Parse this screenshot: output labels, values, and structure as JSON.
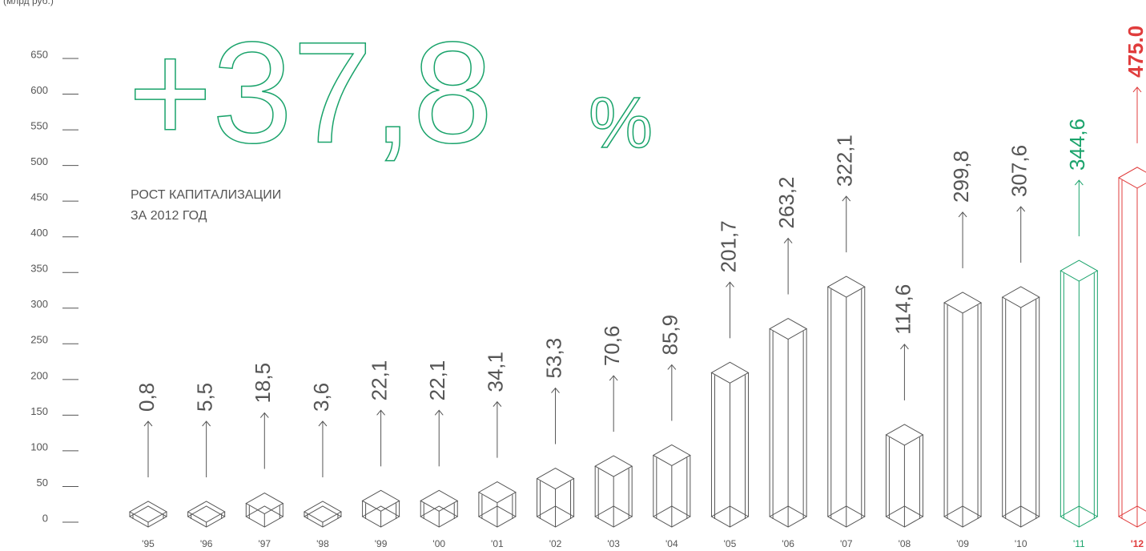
{
  "chart_data": {
    "type": "column3d",
    "y_unit": "(млрд руб.)",
    "headline": "+37,8",
    "headline_unit": "%",
    "subtitle_lines": [
      "РОСТ КАПИТАЛИЗАЦИИ",
      "ЗА 2012 ГОД"
    ],
    "categories": [
      "'95",
      "'96",
      "'97",
      "'98",
      "'99",
      "'00",
      "'01",
      "'02",
      "'03",
      "'04",
      "'05",
      "'06",
      "'07",
      "'08",
      "'09",
      "'10",
      "'11",
      "'12"
    ],
    "values": [
      0.8,
      5.5,
      18.5,
      3.6,
      22.1,
      22.1,
      34.1,
      53.3,
      70.6,
      85.9,
      201.7,
      263.2,
      322.1,
      114.6,
      299.8,
      307.6,
      344.6,
      475.0
    ],
    "value_labels": [
      "0,8",
      "5,5",
      "18,5",
      "3,6",
      "22,1",
      "22,1",
      "34,1",
      "53,3",
      "70,6",
      "85,9",
      "201,7",
      "263,2",
      "322,1",
      "114,6",
      "299,8",
      "307,6",
      "344,6",
      "475.0"
    ],
    "colors": [
      "#555555",
      "#555555",
      "#555555",
      "#555555",
      "#555555",
      "#555555",
      "#555555",
      "#555555",
      "#555555",
      "#555555",
      "#555555",
      "#555555",
      "#555555",
      "#555555",
      "#555555",
      "#555555",
      "#1aa36b",
      "#e03c3c"
    ],
    "headline_color": "#1aa36b",
    "ylim": [
      0,
      650
    ],
    "yticks": [
      0,
      50,
      100,
      150,
      200,
      250,
      300,
      350,
      400,
      450,
      500,
      550,
      600,
      650
    ]
  }
}
